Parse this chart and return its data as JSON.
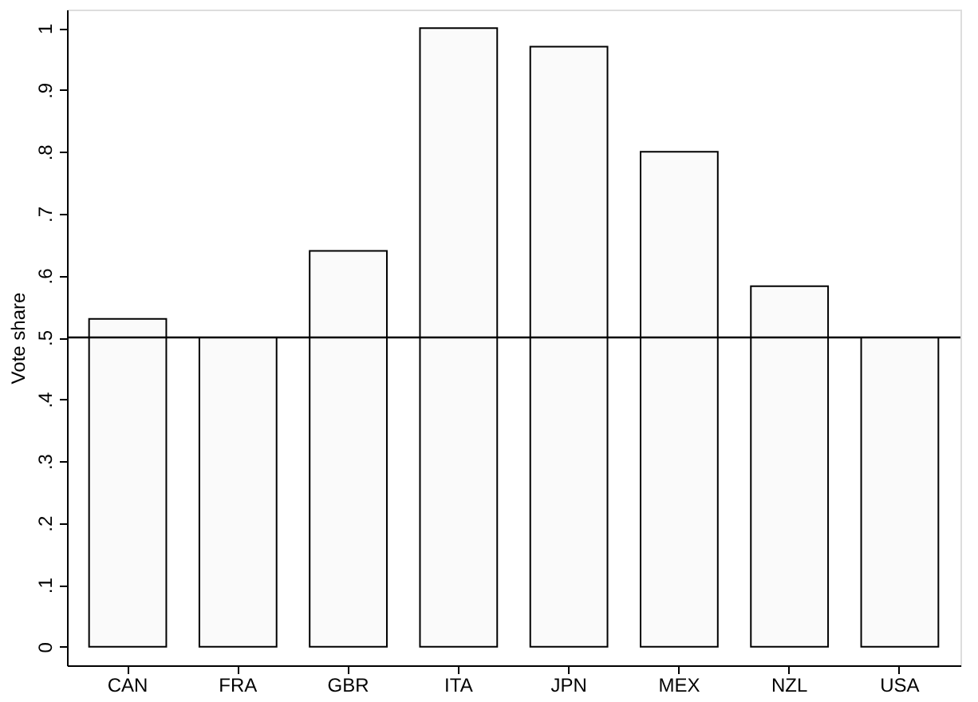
{
  "chart_data": {
    "type": "bar",
    "ylabel": "Vote share",
    "categories": [
      "CAN",
      "FRA",
      "GBR",
      "ITA",
      "JPN",
      "MEX",
      "NZL",
      "USA"
    ],
    "values": [
      0.53,
      0.5,
      0.64,
      1.0,
      0.97,
      0.8,
      0.583,
      0.5
    ],
    "color": "#fafafa",
    "ylim": [
      -0.03,
      1.03
    ],
    "yticks": [
      {
        "value": 0,
        "label": "0"
      },
      {
        "value": 0.1,
        "label": ".1"
      },
      {
        "value": 0.2,
        "label": ".2"
      },
      {
        "value": 0.3,
        "label": ".3"
      },
      {
        "value": 0.4,
        "label": ".4"
      },
      {
        "value": 0.5,
        "label": ".5"
      },
      {
        "value": 0.6,
        "label": ".6"
      },
      {
        "value": 0.7,
        "label": ".7"
      },
      {
        "value": 0.8,
        "label": ".8"
      },
      {
        "value": 0.9,
        "label": ".9"
      },
      {
        "value": 1,
        "label": "1"
      }
    ],
    "ref_lines": [
      {
        "axis": "y",
        "value": 0.5,
        "color": "#000000"
      }
    ],
    "grid": false
  }
}
